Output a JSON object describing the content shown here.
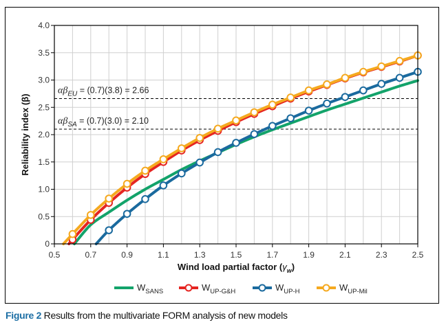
{
  "caption": {
    "label": "Figure 2",
    "text": " Results from the multivariate FORM analysis of new models",
    "label_color": "#1c6ea4"
  },
  "chart_data": {
    "type": "line",
    "title": "",
    "xlabel": "Wind load partial factor (γw)",
    "xlabel_main": "Wind load partial factor (",
    "xlabel_sym": "γ",
    "xlabel_sub": "w",
    "xlabel_end": ")",
    "ylabel": "Reliability index (β)",
    "xlim": [
      0.5,
      2.5
    ],
    "ylim": [
      0,
      4.0
    ],
    "x_ticks": [
      0.5,
      0.7,
      0.9,
      1.1,
      1.3,
      1.5,
      1.7,
      1.9,
      2.1,
      2.3,
      2.5
    ],
    "x_tick_labels": [
      "0.5",
      "0.7",
      "0.9",
      "1.1",
      "1.3",
      "1.5",
      "1.7",
      "1.9",
      "2.1",
      "2.3",
      "2.5"
    ],
    "x_grid": [
      0.6,
      0.8,
      1.0,
      1.2,
      1.4,
      1.6,
      1.8,
      2.0,
      2.2,
      2.4
    ],
    "y_ticks": [
      0,
      0.5,
      1.0,
      1.5,
      2.0,
      2.5,
      3.0,
      3.5,
      4.0
    ],
    "y_tick_labels": [
      "0",
      "0.5",
      "1.0",
      "1.5",
      "2.0",
      "2.5",
      "3.0",
      "3.5",
      "4.0"
    ],
    "grid": true,
    "legend_position": "bottom",
    "reference_lines": [
      {
        "y": 2.66,
        "label_pre": "αβ",
        "label_sub": "EU",
        "label_post": " = (0.7)(3.8) = 2.66"
      },
      {
        "y": 2.1,
        "label_pre": "αβ",
        "label_sub": "SA",
        "label_post": " = (0.7)(3.0) = 2.10"
      }
    ],
    "series": [
      {
        "name": "WSANS",
        "base": "W",
        "sub": "SANS",
        "color": "#13a36a",
        "markers": false,
        "x": [
          0.61,
          0.7,
          0.8,
          0.9,
          1.0,
          1.1,
          1.2,
          1.3,
          1.4,
          1.5,
          1.6,
          1.7,
          1.8,
          1.9,
          2.0,
          2.1,
          2.2,
          2.3,
          2.4,
          2.5
        ],
        "y": [
          0,
          0.35,
          0.58,
          0.8,
          1.0,
          1.18,
          1.36,
          1.52,
          1.67,
          1.82,
          1.96,
          2.09,
          2.21,
          2.33,
          2.45,
          2.56,
          2.67,
          2.78,
          2.89,
          2.99
        ]
      },
      {
        "name": "WUP-G&H",
        "base": "W",
        "sub": "UP-G&H",
        "color": "#e52521",
        "markers": true,
        "x": [
          0.58,
          0.6,
          0.7,
          0.8,
          0.9,
          1.0,
          1.1,
          1.2,
          1.3,
          1.4,
          1.5,
          1.6,
          1.7,
          1.8,
          1.9,
          2.0,
          2.1,
          2.2,
          2.3,
          2.4,
          2.5
        ],
        "y": [
          0,
          0.08,
          0.44,
          0.75,
          1.03,
          1.28,
          1.5,
          1.71,
          1.9,
          2.07,
          2.23,
          2.38,
          2.52,
          2.66,
          2.79,
          2.91,
          3.03,
          3.14,
          3.24,
          3.34,
          3.45
        ],
        "marker_start": 1
      },
      {
        "name": "WUP-H",
        "base": "W",
        "sub": "UP-H",
        "color": "#1a6a9e",
        "markers": true,
        "x": [
          0.73,
          0.8,
          0.9,
          1.0,
          1.1,
          1.2,
          1.3,
          1.4,
          1.5,
          1.6,
          1.7,
          1.8,
          1.9,
          2.0,
          2.1,
          2.2,
          2.3,
          2.4,
          2.5
        ],
        "y": [
          0,
          0.25,
          0.55,
          0.82,
          1.07,
          1.29,
          1.49,
          1.68,
          1.85,
          2.01,
          2.16,
          2.3,
          2.44,
          2.57,
          2.69,
          2.81,
          2.93,
          3.04,
          3.15
        ],
        "marker_start": 1
      },
      {
        "name": "WUP-Mil",
        "base": "W",
        "sub": "UP-Mil",
        "color": "#f5a91f",
        "markers": true,
        "x": [
          0.55,
          0.6,
          0.7,
          0.8,
          0.9,
          1.0,
          1.1,
          1.2,
          1.3,
          1.4,
          1.5,
          1.6,
          1.7,
          1.8,
          1.9,
          2.0,
          2.1,
          2.2,
          2.3,
          2.4,
          2.5
        ],
        "y": [
          0,
          0.18,
          0.53,
          0.83,
          1.1,
          1.34,
          1.55,
          1.75,
          1.94,
          2.11,
          2.26,
          2.41,
          2.55,
          2.68,
          2.81,
          2.92,
          3.04,
          3.15,
          3.25,
          3.35,
          3.45
        ],
        "marker_start": 1
      }
    ]
  }
}
